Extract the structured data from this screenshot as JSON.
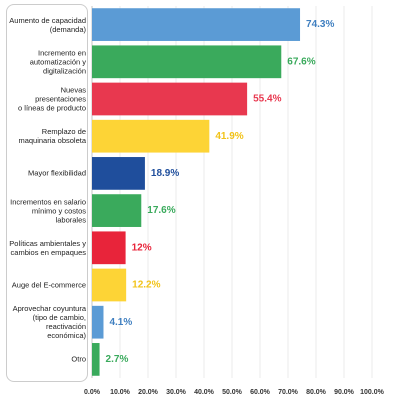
{
  "chart_data": {
    "type": "bar",
    "orientation": "horizontal",
    "categories": [
      "Aumento de capacidad\n(demanda)",
      "Incremento en\nautomatización y\ndigitalización",
      "Nuevas presentaciones\no líneas de producto",
      "Remplazo de\nmaquinaria obsoleta",
      "Mayor flexibilidad",
      "Incrementos en salario\nmínimo y costos\nlaborales",
      "Políticas ambientales y\ncambios en empaques",
      "Auge del E-commerce",
      "Aprovechar coyuntura\n(tipo de cambio,\nreactivación económica)",
      "Otro"
    ],
    "values": [
      74.3,
      67.6,
      55.4,
      41.9,
      18.9,
      17.6,
      12,
      12.2,
      4.1,
      2.7
    ],
    "value_labels": [
      "74.3%",
      "67.6%",
      "55.4%",
      "41.9%",
      "18.9%",
      "17.6%",
      "12%",
      "12.2%",
      "4.1%",
      "2.7%"
    ],
    "colors": [
      "#5b9bd5",
      "#3aaa5c",
      "#e8384f",
      "#fdd436",
      "#1f4e9c",
      "#3aaa5c",
      "#e8243a",
      "#fdd436",
      "#5b9bd5",
      "#3aaa5c"
    ],
    "label_colors": [
      "#3f7fc0",
      "#3aaa5c",
      "#e8384f",
      "#f2c318",
      "#1f4e9c",
      "#3aaa5c",
      "#e8243a",
      "#f2c318",
      "#3f7fc0",
      "#3aaa5c"
    ],
    "xlim": [
      0,
      100
    ],
    "xticks": [
      {
        "value": 0,
        "label": "0.0%"
      },
      {
        "value": 10,
        "label": "10.0%"
      },
      {
        "value": 20,
        "label": "20.0%"
      },
      {
        "value": 30,
        "label": "30.0%"
      },
      {
        "value": 40,
        "label": "40.0%"
      },
      {
        "value": 50,
        "label": "50.0%"
      },
      {
        "value": 60,
        "label": "60.0%"
      },
      {
        "value": 70,
        "label": "70.0%"
      },
      {
        "value": 80,
        "label": "80.0%"
      },
      {
        "value": 90,
        "label": "90.0%"
      },
      {
        "value": 100,
        "label": "100.0%"
      }
    ],
    "grid": true
  }
}
